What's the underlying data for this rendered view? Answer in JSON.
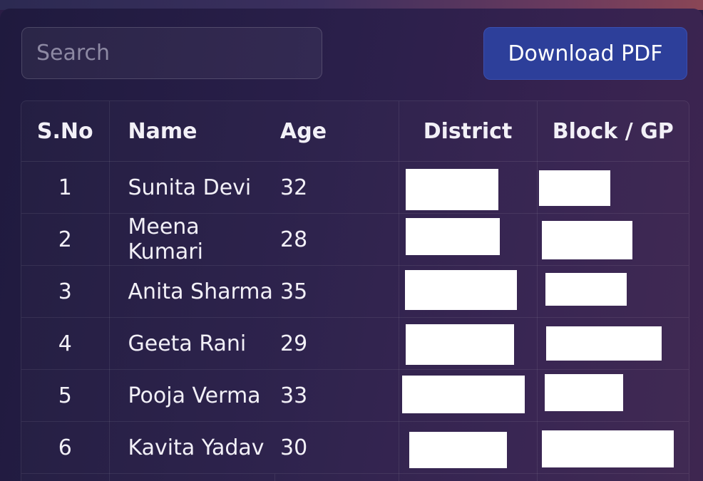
{
  "search": {
    "placeholder": "Search"
  },
  "toolbar": {
    "download_label": "Download PDF"
  },
  "table": {
    "headers": {
      "sno": "S.No",
      "name": "Name",
      "age": "Age",
      "district": "District",
      "block": "Block / GP"
    },
    "rows": [
      {
        "sno": "1",
        "name": "Sunita Devi",
        "age": "32"
      },
      {
        "sno": "2",
        "name": "Meena Kumari",
        "age": "28"
      },
      {
        "sno": "3",
        "name": "Anita Sharma",
        "age": "35"
      },
      {
        "sno": "4",
        "name": "Geeta Rani",
        "age": "29"
      },
      {
        "sno": "5",
        "name": "Pooja Verma",
        "age": "33"
      },
      {
        "sno": "6",
        "name": "Kavita Yadav",
        "age": "30"
      }
    ]
  }
}
